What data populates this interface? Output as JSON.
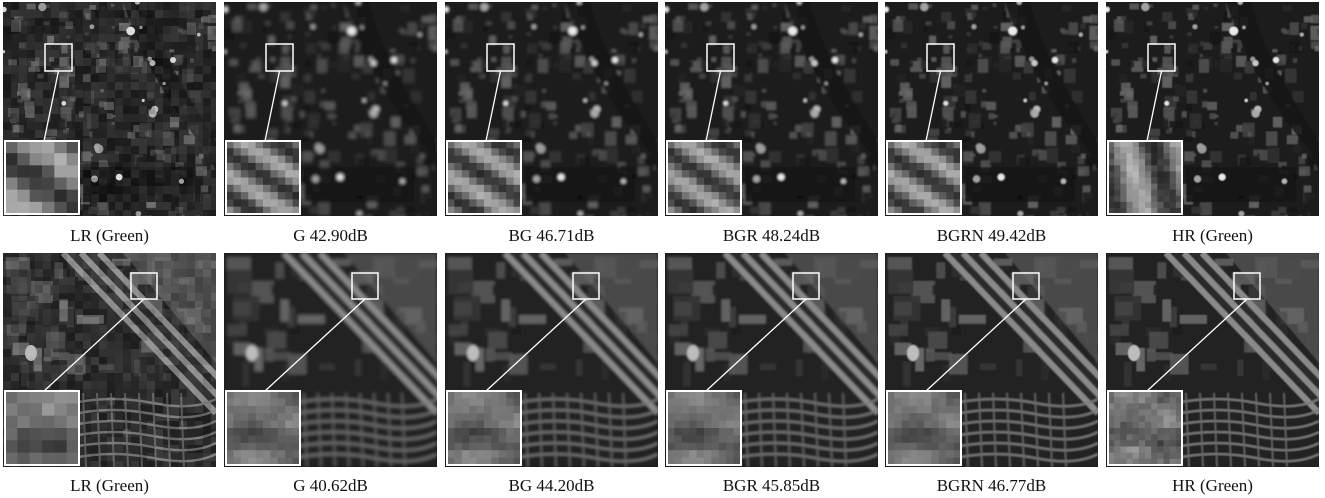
{
  "figure": {
    "rows": [
      {
        "panels": [
          {
            "caption": "LR (Green)",
            "kind": "lr"
          },
          {
            "caption": "G 42.90dB",
            "kind": "sr"
          },
          {
            "caption": "BG 46.71dB",
            "kind": "sr"
          },
          {
            "caption": "BGR 48.24dB",
            "kind": "sr"
          },
          {
            "caption": "BGRN 49.42dB",
            "kind": "sr"
          },
          {
            "caption": "HR (Green)",
            "kind": "hr"
          }
        ]
      },
      {
        "panels": [
          {
            "caption": "LR (Green)",
            "kind": "lr"
          },
          {
            "caption": "G 40.62dB",
            "kind": "sr"
          },
          {
            "caption": "BG 44.20dB",
            "kind": "sr"
          },
          {
            "caption": "BGR 45.85dB",
            "kind": "sr"
          },
          {
            "caption": "BGRN 46.77dB",
            "kind": "sr"
          },
          {
            "caption": "HR (Green)",
            "kind": "hr"
          }
        ]
      }
    ]
  },
  "colors": {
    "background": "#ffffff",
    "zoom_frame": "#ffffff",
    "caption_text": "#111111"
  }
}
